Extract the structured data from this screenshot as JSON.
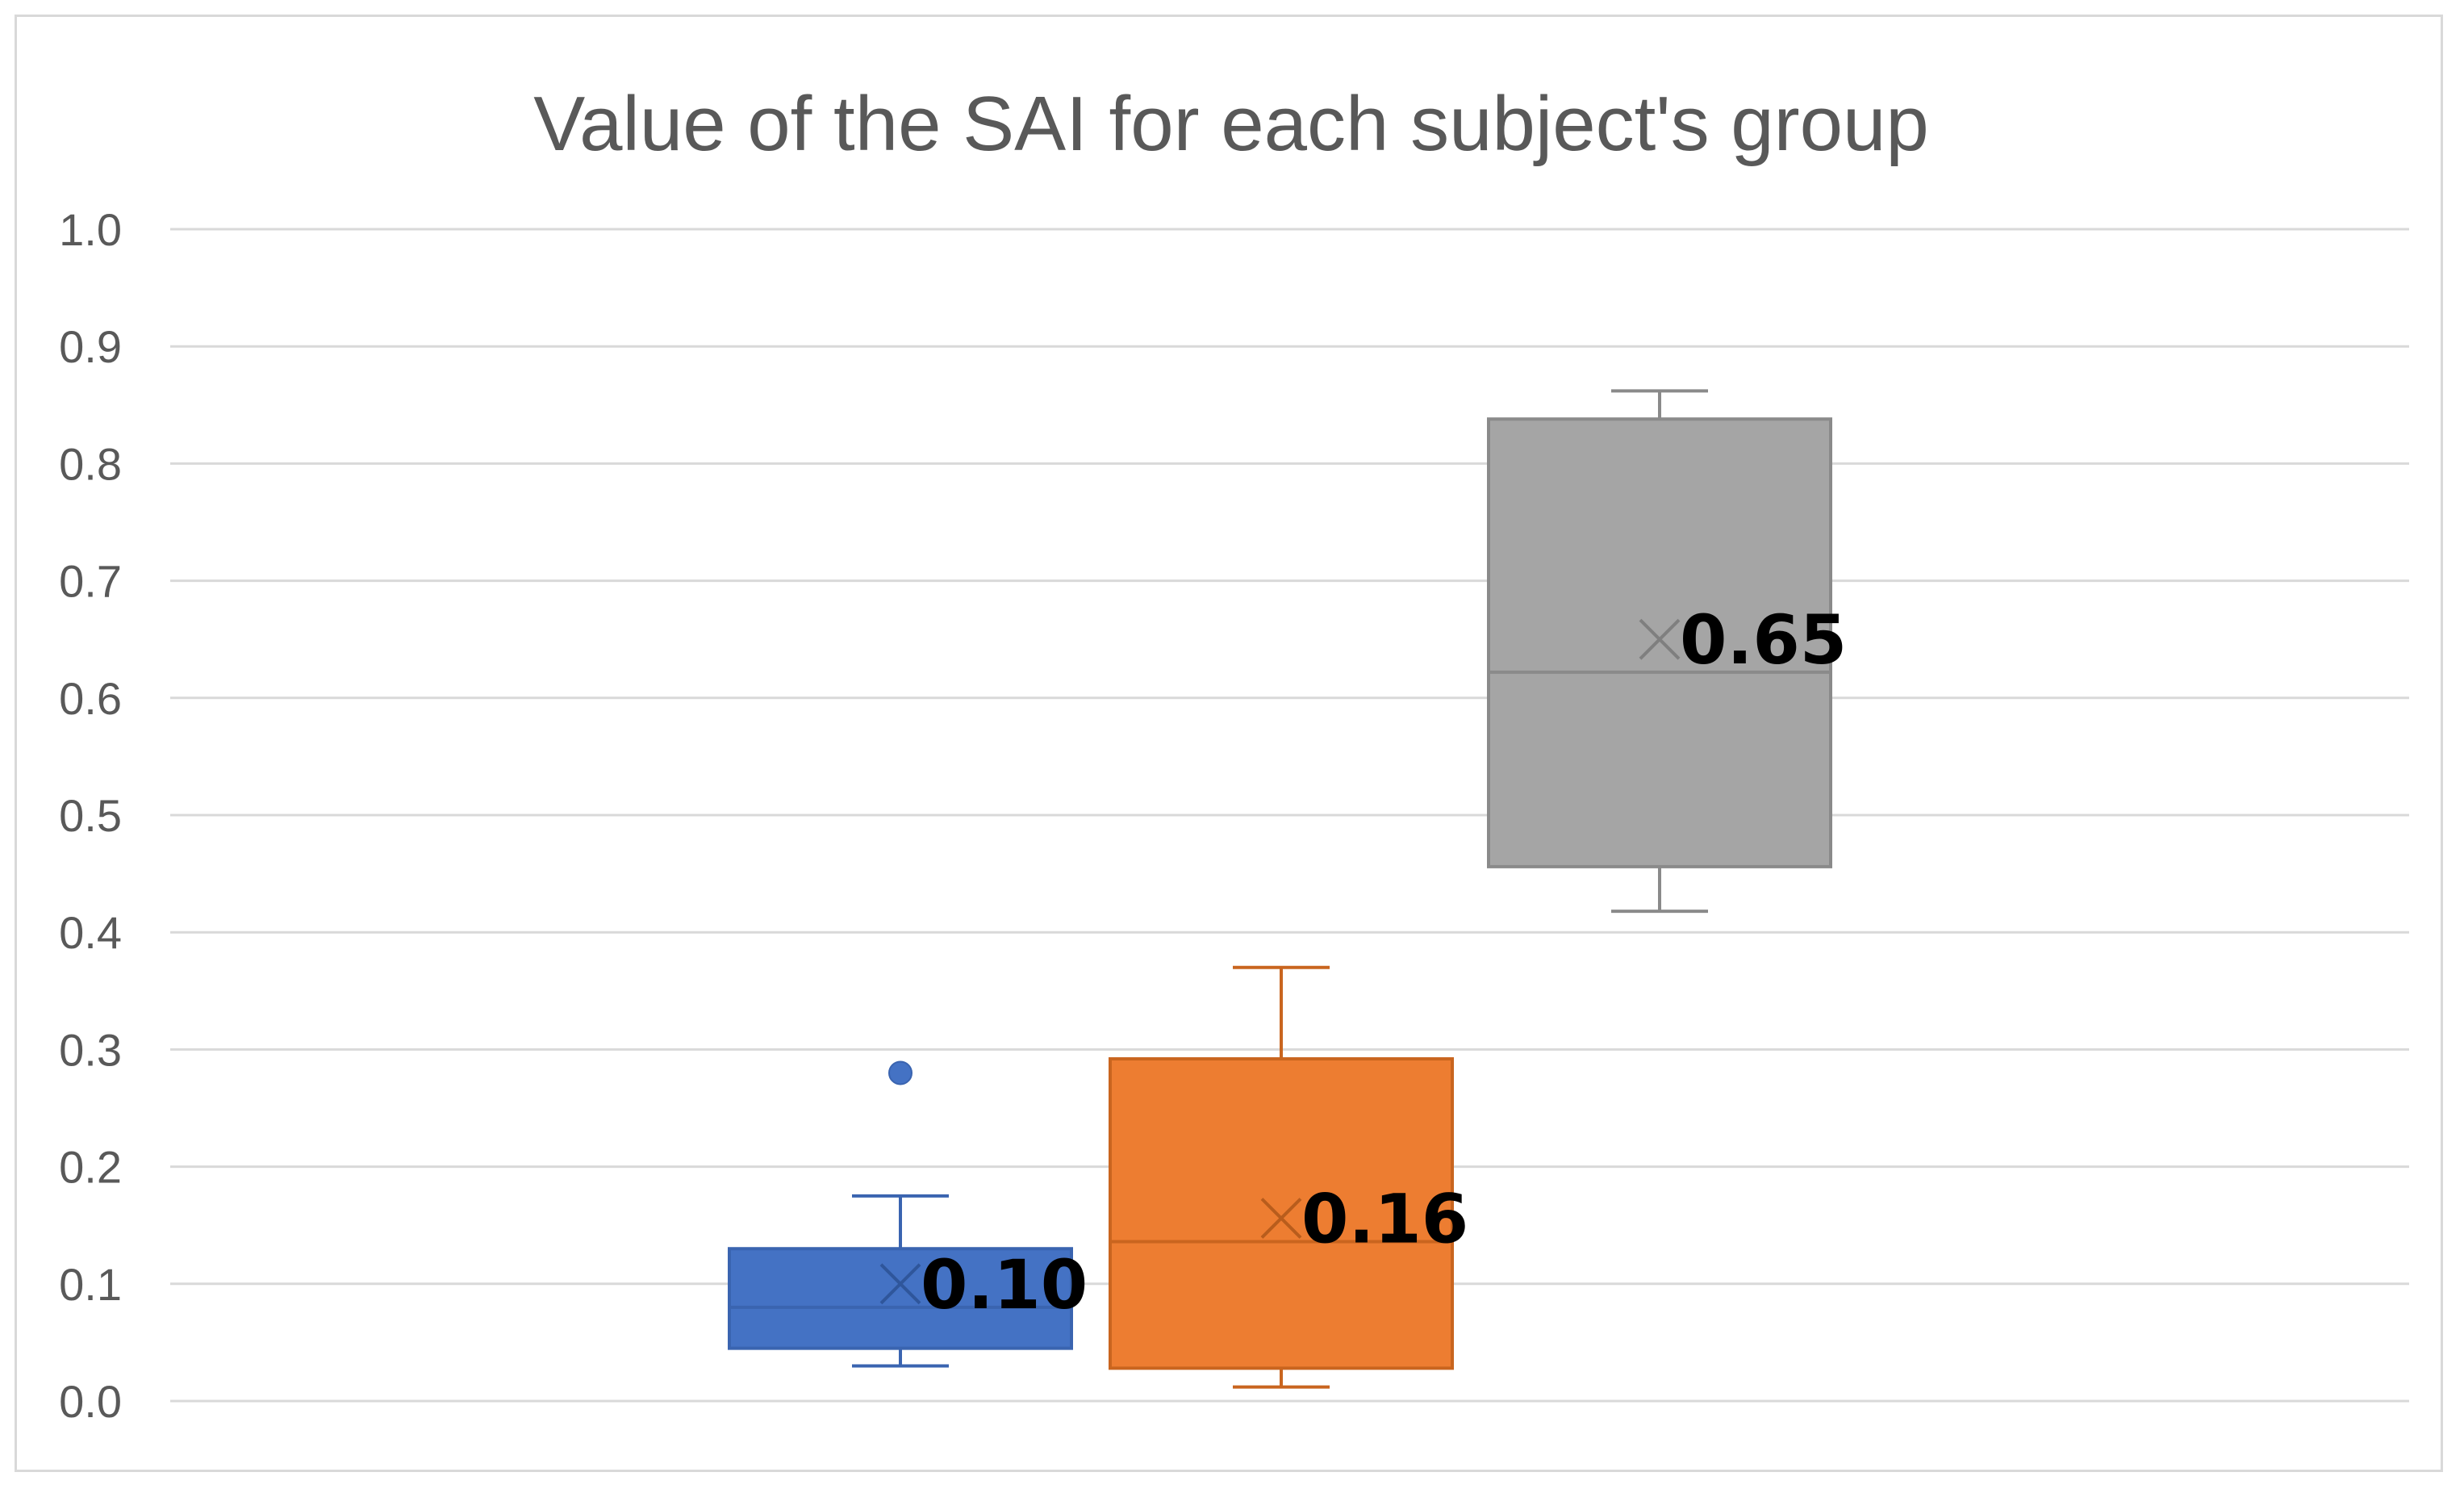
{
  "chart_data": {
    "type": "box",
    "title": "Value of the SAI for each subject's group",
    "xlabel": "",
    "ylabel": "",
    "ylim": [
      0,
      1.0
    ],
    "yticks": [
      "0.0",
      "0.1",
      "0.2",
      "0.3",
      "0.4",
      "0.5",
      "0.6",
      "0.7",
      "0.8",
      "0.9",
      "1.0"
    ],
    "grid": true,
    "legend": "none",
    "series": [
      {
        "color": "#4472c4",
        "whisker_low": 0.03,
        "q1": 0.045,
        "median": 0.08,
        "q3": 0.13,
        "whisker_high": 0.175,
        "mean": 0.1,
        "mean_label": "0.10",
        "outliers": [
          0.28
        ]
      },
      {
        "color": "#ed7d31",
        "whisker_low": 0.012,
        "q1": 0.028,
        "median": 0.136,
        "q3": 0.292,
        "whisker_high": 0.37,
        "mean": 0.156,
        "mean_label": "0.16",
        "outliers": []
      },
      {
        "color": "#a5a5a5",
        "whisker_low": 0.418,
        "q1": 0.456,
        "median": 0.622,
        "q3": 0.838,
        "whisker_high": 0.862,
        "mean": 0.65,
        "mean_label": "0.65",
        "outliers": []
      }
    ]
  }
}
